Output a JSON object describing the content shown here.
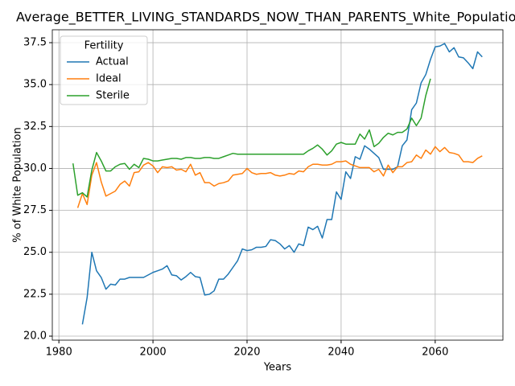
{
  "chart_data": {
    "type": "line",
    "title": "Average_BETTER_LIVING_STANDARDS_NOW_THAN_PARENTS_White_Population",
    "xlabel": "Years",
    "ylabel": "% of White Population",
    "legend_title": "Fertility",
    "legend": "upper left",
    "grid": true,
    "x": [
      1983,
      1984,
      1985,
      1986,
      1987,
      1988,
      1989,
      1990,
      1991,
      1992,
      1993,
      1994,
      1995,
      1996,
      1997,
      1998,
      1999,
      2000,
      2001,
      2002,
      2003,
      2004,
      2005,
      2006,
      2007,
      2008,
      2009,
      2010,
      2011,
      2012,
      2013,
      2014,
      2015,
      2016,
      2017,
      2018,
      2019,
      2020,
      2021,
      2022,
      2023,
      2024,
      2025,
      2026,
      2027,
      2028,
      2029,
      2030,
      2031,
      2032,
      2033,
      2034,
      2035,
      2036,
      2037,
      2038,
      2039,
      2040,
      2041,
      2042,
      2043,
      2044,
      2045,
      2046,
      2047,
      2048,
      2049,
      2050,
      2051,
      2052,
      2053,
      2054,
      2055,
      2056,
      2057,
      2058,
      2059,
      2060,
      2061,
      2062,
      2063,
      2064,
      2065,
      2066,
      2067,
      2068,
      2069,
      2070
    ],
    "series": [
      {
        "name": "Actual",
        "color": "#1f77b4",
        "values": [
          null,
          null,
          20.7,
          22.3,
          25.0,
          23.9,
          23.5,
          22.8,
          23.1,
          23.05,
          23.4,
          23.4,
          23.5,
          23.5,
          23.5,
          23.5,
          23.65,
          23.8,
          23.9,
          24.0,
          24.2,
          23.65,
          23.6,
          23.35,
          23.55,
          23.8,
          23.55,
          23.5,
          22.45,
          22.5,
          22.7,
          23.4,
          23.4,
          23.7,
          24.1,
          24.5,
          25.2,
          25.1,
          25.15,
          25.3,
          25.3,
          25.35,
          25.75,
          25.7,
          25.5,
          25.2,
          25.4,
          25.0,
          25.5,
          25.4,
          26.5,
          26.35,
          26.55,
          25.85,
          26.95,
          26.95,
          28.6,
          28.15,
          29.8,
          29.4,
          30.7,
          30.55,
          31.35,
          31.15,
          30.9,
          30.65,
          29.95,
          29.95,
          29.95,
          30.1,
          31.35,
          31.7,
          33.5,
          33.9,
          35.1,
          35.6,
          36.5,
          37.25,
          37.3,
          37.45,
          36.95,
          37.2,
          36.65,
          36.6,
          36.3,
          35.95,
          36.95,
          36.65
        ]
      },
      {
        "name": "Ideal",
        "color": "#ff7f0e",
        "values": [
          null,
          27.65,
          28.5,
          27.85,
          29.6,
          30.35,
          29.2,
          28.35,
          28.5,
          28.65,
          29.05,
          29.25,
          28.95,
          29.75,
          29.8,
          30.2,
          30.35,
          30.15,
          29.75,
          30.1,
          30.05,
          30.1,
          29.9,
          29.95,
          29.8,
          30.25,
          29.6,
          29.75,
          29.15,
          29.15,
          28.95,
          29.1,
          29.15,
          29.25,
          29.6,
          29.65,
          29.7,
          30.0,
          29.75,
          29.65,
          29.7,
          29.7,
          29.75,
          29.6,
          29.55,
          29.6,
          29.7,
          29.65,
          29.85,
          29.8,
          30.1,
          30.25,
          30.25,
          30.2,
          30.2,
          30.25,
          30.4,
          30.4,
          30.45,
          30.25,
          30.15,
          30.05,
          30.05,
          30.05,
          29.8,
          29.95,
          29.55,
          30.2,
          29.75,
          30.1,
          30.1,
          30.35,
          30.4,
          30.8,
          30.6,
          31.1,
          30.85,
          31.3,
          31.0,
          31.25,
          30.95,
          30.9,
          30.8,
          30.4,
          30.4,
          30.35,
          30.6,
          30.75
        ]
      },
      {
        "name": "Sterile",
        "color": "#2ca02c",
        "values": [
          30.3,
          28.4,
          28.55,
          28.3,
          29.9,
          30.95,
          30.45,
          29.85,
          29.85,
          30.1,
          30.25,
          30.3,
          29.95,
          30.25,
          30.05,
          30.6,
          30.55,
          30.45,
          30.45,
          30.5,
          30.55,
          30.6,
          30.6,
          30.55,
          30.65,
          30.65,
          30.6,
          30.6,
          30.65,
          30.65,
          30.6,
          30.6,
          30.7,
          30.8,
          30.9,
          30.85,
          30.85,
          30.85,
          30.85,
          30.85,
          30.85,
          30.85,
          30.85,
          30.85,
          30.85,
          30.85,
          30.85,
          30.85,
          30.85,
          30.85,
          31.05,
          31.2,
          31.4,
          31.15,
          30.8,
          31.05,
          31.45,
          31.55,
          31.45,
          31.45,
          31.45,
          32.05,
          31.75,
          32.3,
          31.3,
          31.5,
          31.85,
          32.1,
          32.0,
          32.15,
          32.15,
          32.35,
          33.0,
          32.55,
          33.0,
          34.35,
          35.35,
          null,
          null,
          null,
          null,
          null,
          null,
          null,
          null,
          null,
          null,
          null
        ]
      }
    ],
    "xlim": [
      1978.6,
      2074.4
    ],
    "xticks": [
      1980,
      2000,
      2020,
      2040,
      2060
    ],
    "ylim": [
      19.76,
      38.27
    ],
    "yticks": [
      {
        "value": 20,
        "label": "20.0"
      },
      22.5,
      {
        "value": 25,
        "label": "25.0"
      },
      27.5,
      {
        "value": 30,
        "label": "30.0"
      },
      32.5,
      {
        "value": 35,
        "label": "35.0"
      },
      37.5
    ]
  }
}
